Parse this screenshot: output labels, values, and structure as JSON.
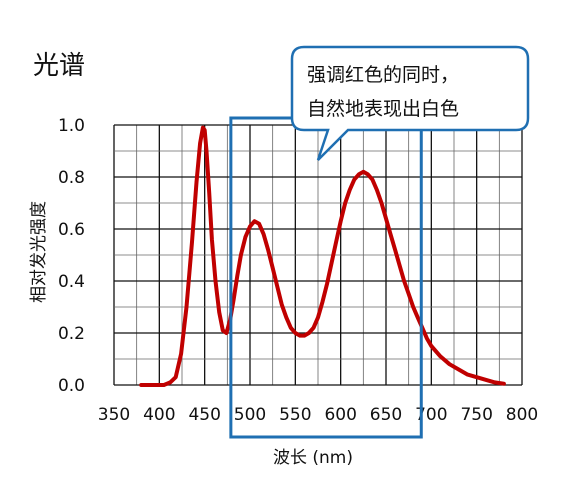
{
  "chart_data": {
    "type": "line",
    "title": "光谱",
    "xlabel": "波长 (nm)",
    "ylabel": "相对发光强度",
    "xlim": [
      350,
      800
    ],
    "ylim": [
      0,
      1.0
    ],
    "x_ticks": [
      "350",
      "400",
      "450",
      "500",
      "550",
      "600",
      "650",
      "700",
      "750",
      "800"
    ],
    "y_ticks": [
      "0.0",
      "0.2",
      "0.4",
      "0.6",
      "0.8",
      "1.0"
    ],
    "grid": true,
    "series": [
      {
        "color": "#c00000",
        "x": [
          380,
          395,
          405,
          412,
          418,
          424,
          430,
          436,
          441,
          445,
          448,
          450,
          452,
          455,
          458,
          462,
          466,
          470,
          474,
          478,
          482,
          486,
          490,
          495,
          500,
          505,
          510,
          515,
          520,
          525,
          530,
          535,
          540,
          545,
          550,
          555,
          560,
          565,
          570,
          575,
          580,
          585,
          590,
          595,
          600,
          605,
          610,
          615,
          620,
          625,
          630,
          635,
          640,
          645,
          650,
          655,
          660,
          665,
          670,
          675,
          680,
          685,
          690,
          695,
          700,
          710,
          720,
          730,
          740,
          750,
          760,
          770,
          780
        ],
        "y": [
          0.0,
          0.0,
          0.0,
          0.01,
          0.03,
          0.12,
          0.3,
          0.55,
          0.78,
          0.93,
          0.99,
          0.98,
          0.9,
          0.74,
          0.56,
          0.4,
          0.28,
          0.21,
          0.2,
          0.25,
          0.33,
          0.42,
          0.5,
          0.57,
          0.61,
          0.63,
          0.62,
          0.58,
          0.52,
          0.45,
          0.38,
          0.31,
          0.26,
          0.22,
          0.2,
          0.19,
          0.19,
          0.2,
          0.22,
          0.26,
          0.32,
          0.39,
          0.47,
          0.55,
          0.63,
          0.7,
          0.75,
          0.79,
          0.81,
          0.82,
          0.81,
          0.79,
          0.75,
          0.7,
          0.64,
          0.58,
          0.52,
          0.46,
          0.4,
          0.35,
          0.3,
          0.26,
          0.22,
          0.18,
          0.15,
          0.11,
          0.08,
          0.06,
          0.04,
          0.03,
          0.02,
          0.01,
          0.005
        ]
      }
    ],
    "highlight_range": [
      480,
      690
    ],
    "highlight_color": "#1f6fb2",
    "callout": {
      "lines": [
        "强调红色的同时，",
        "自然地表现出白色"
      ],
      "border_color": "#1f6fb2"
    }
  }
}
